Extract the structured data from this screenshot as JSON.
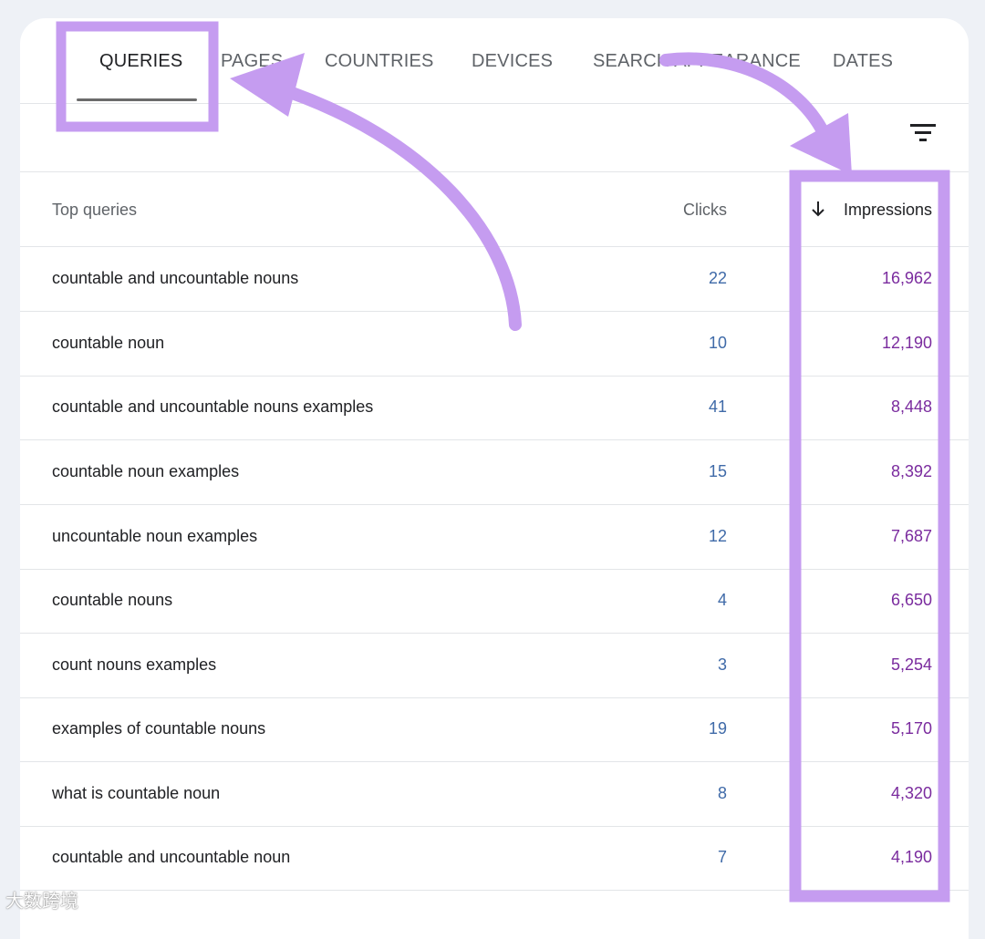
{
  "tabs": [
    {
      "label": "QUERIES"
    },
    {
      "label": "PAGES"
    },
    {
      "label": "COUNTRIES"
    },
    {
      "label": "DEVICES"
    },
    {
      "label": "SEARCH APPEARANCE"
    },
    {
      "label": "DATES"
    }
  ],
  "active_tab": "QUERIES",
  "table": {
    "headers": {
      "queries": "Top queries",
      "clicks": "Clicks",
      "impressions": "Impressions"
    },
    "sort": {
      "column": "Impressions",
      "direction": "descending"
    },
    "rows": [
      {
        "query": "countable and uncountable nouns",
        "clicks": "22",
        "impressions": "16,962"
      },
      {
        "query": "countable noun",
        "clicks": "10",
        "impressions": "12,190"
      },
      {
        "query": "countable and uncountable nouns examples",
        "clicks": "41",
        "impressions": "8,448"
      },
      {
        "query": "countable noun examples",
        "clicks": "15",
        "impressions": "8,392"
      },
      {
        "query": "uncountable noun examples",
        "clicks": "12",
        "impressions": "7,687"
      },
      {
        "query": "countable nouns",
        "clicks": "4",
        "impressions": "6,650"
      },
      {
        "query": "count nouns examples",
        "clicks": "3",
        "impressions": "5,254"
      },
      {
        "query": "examples of countable nouns",
        "clicks": "19",
        "impressions": "5,170"
      },
      {
        "query": "what is countable noun",
        "clicks": "8",
        "impressions": "4,320"
      },
      {
        "query": "countable and uncountable noun",
        "clicks": "7",
        "impressions": "4,190"
      }
    ]
  },
  "icons": {
    "filter": "filter-icon",
    "sort": "arrow-down-icon"
  },
  "colors": {
    "highlight": "#c59cf0",
    "clicks_text": "#3f6aa8",
    "impressions_text": "#7a2b9e"
  },
  "watermark": {
    "text": "大数跨境"
  }
}
